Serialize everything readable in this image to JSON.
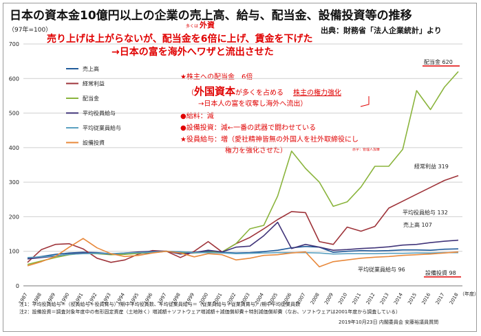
{
  "header": {
    "title": "日本の資本金10億円以上の企業の売上高、給与、配当金、設備投資等の推移",
    "index_note": "（97年=100）",
    "source": "出典：財務省「法人企業統計」より"
  },
  "annotations": {
    "ruby": "多くは",
    "line1": "売り上げは上がらないが、配当金を6倍に上げ、賃金を下げた",
    "line1_emph": "外資",
    "line2": "→日本の富を海外へワザと流出させた",
    "a1": "★株主への配当金　6倍",
    "a2_pre": "（",
    "a2_big": "外国資本",
    "a2_post": "が多くを占める",
    "a2_right": "株主の権力強化",
    "a3": "→日本人の富を収奪し海外へ流出）",
    "a4": "●給料：減",
    "a5": "●設備投資：減←一番の武器で闘わせている",
    "a6": "★役員給与：増（愛社精神皆無の外国人を社外取締役にし",
    "a7": "権力を強化させた）",
    "small_note": "赤字：管理人加筆"
  },
  "notes": {
    "n1": "注1：平均役員給与＝（役員給与＋役員賞与）/期中平均役員数、平均従業員給与＝（従業員給与＋従業員賞与）/期中平均従業員数",
    "n2": "注2：設備投資＝調査対象年度中の有形固定資産（土地除く）増減額＋ソフトウェア増減額＋減価償却費＋特別減価償却費（なお、ソフトウェアは2001年度から調査している）",
    "footer": "2019年10月23日 内閣委員会 安藤裕議員質問"
  },
  "chart_data": {
    "type": "line",
    "title": "日本の資本金10億円以上の企業の売上高、給与、配当金、設備投資等の推移",
    "ylabel": "（97年=100）",
    "xlabel": "（年度）",
    "ylim": [
      0,
      700
    ],
    "yticks": [
      "0",
      "100",
      "200",
      "300",
      "400",
      "500",
      "600",
      "700"
    ],
    "x": [
      "1987",
      "1988",
      "1989",
      "1990",
      "1991",
      "1992",
      "1993",
      "1994",
      "1995",
      "1996",
      "1997",
      "1998",
      "1999",
      "2000",
      "2001",
      "2002",
      "2003",
      "2004",
      "2005",
      "2006",
      "2007",
      "2008",
      "2009",
      "2010",
      "2011",
      "2012",
      "2013",
      "2014",
      "2015",
      "2016",
      "2017",
      "2018"
    ],
    "grid": true,
    "legend_placement": "top-left",
    "series": [
      {
        "name": "売上高",
        "color": "#1f5a9a",
        "values": [
          80,
          85,
          91,
          95,
          97,
          96,
          93,
          92,
          94,
          96,
          100,
          98,
          97,
          100,
          97,
          95,
          96,
          99,
          103,
          110,
          114,
          112,
          97,
          100,
          102,
          101,
          102,
          104,
          104,
          103,
          106,
          107
        ]
      },
      {
        "name": "経常利益",
        "color": "#9e3339",
        "values": [
          68,
          105,
          120,
          122,
          107,
          80,
          68,
          75,
          92,
          102,
          100,
          82,
          100,
          128,
          98,
          122,
          140,
          165,
          192,
          215,
          212,
          128,
          120,
          170,
          158,
          172,
          225,
          245,
          265,
          285,
          305,
          319
        ]
      },
      {
        "name": "配当金",
        "color": "#8ab43c",
        "values": [
          62,
          72,
          82,
          90,
          94,
          93,
          90,
          91,
          94,
          98,
          100,
          95,
          95,
          97,
          98,
          122,
          165,
          175,
          260,
          390,
          340,
          300,
          230,
          243,
          286,
          346,
          346,
          395,
          565,
          510,
          575,
          620
        ]
      },
      {
        "name": "平均役員給与",
        "color": "#403479",
        "values": [
          78,
          82,
          86,
          92,
          95,
          94,
          92,
          95,
          98,
          100,
          100,
          92,
          96,
          103,
          98,
          112,
          115,
          145,
          184,
          108,
          120,
          112,
          103,
          105,
          108,
          110,
          113,
          118,
          120,
          125,
          129,
          132
        ]
      },
      {
        "name": "平均従業員給与",
        "color": "#5aa0c0",
        "values": [
          82,
          84,
          87,
          91,
          93,
          94,
          93,
          95,
          96,
          98,
          100,
          99,
          96,
          96,
          95,
          93,
          94,
          95,
          96,
          96,
          96,
          95,
          92,
          93,
          93,
          93,
          94,
          94,
          95,
          95,
          96,
          96
        ]
      },
      {
        "name": "設備投資",
        "color": "#e8883a",
        "values": [
          58,
          70,
          85,
          112,
          137,
          110,
          93,
          85,
          88,
          95,
          100,
          95,
          84,
          93,
          90,
          75,
          80,
          88,
          90,
          95,
          98,
          55,
          70,
          75,
          80,
          83,
          85,
          88,
          90,
          92,
          95,
          98
        ]
      }
    ],
    "end_labels": [
      {
        "series": "配当金",
        "text": "配当金 620"
      },
      {
        "series": "経常利益",
        "text": "経常利益 319"
      },
      {
        "series": "平均役員給与",
        "text": "平均役員給与 132"
      },
      {
        "series": "売上高",
        "text": "売上高 107"
      },
      {
        "series": "平均従業員給与",
        "text": "平均従業員給与 96"
      },
      {
        "series": "設備投資",
        "text": "設備投資 98"
      }
    ]
  }
}
